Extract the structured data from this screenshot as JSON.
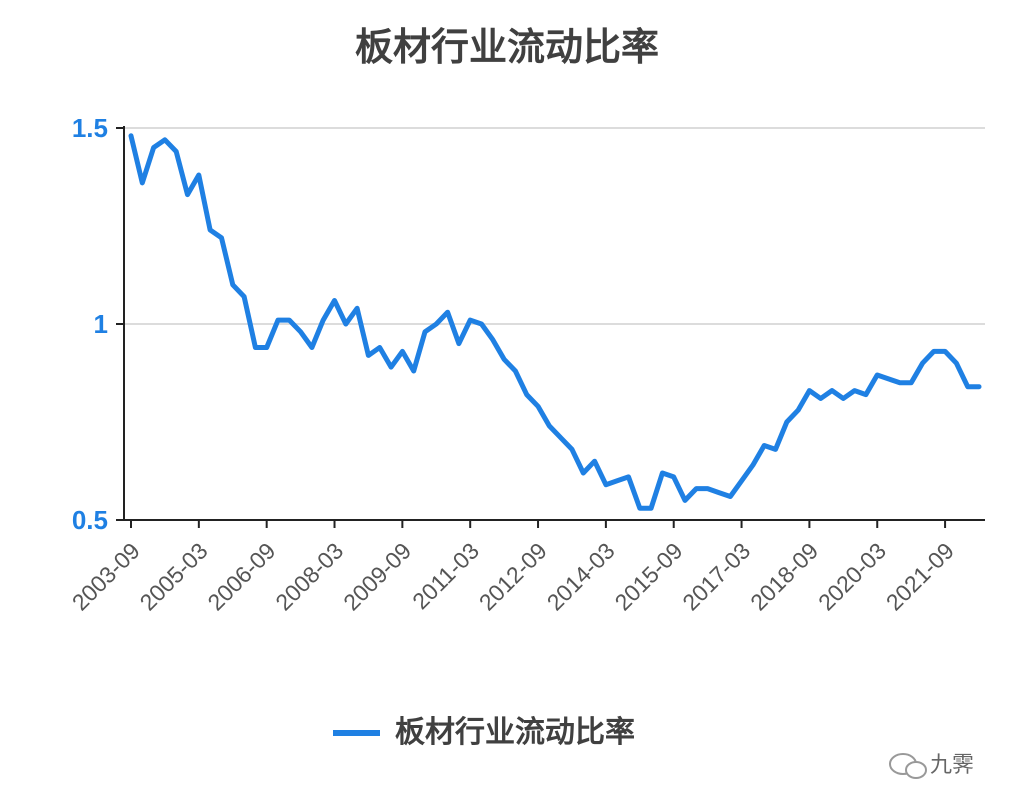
{
  "chart_data": {
    "type": "line",
    "title": "板材行业流动比率",
    "categories": [
      "2003-09",
      null,
      null,
      null,
      null,
      null,
      "2005-03",
      null,
      null,
      null,
      null,
      null,
      "2006-09",
      null,
      null,
      null,
      null,
      null,
      "2008-03",
      null,
      null,
      null,
      null,
      null,
      "2009-09",
      null,
      null,
      null,
      null,
      null,
      "2011-03",
      null,
      null,
      null,
      null,
      null,
      "2012-09",
      null,
      null,
      null,
      null,
      null,
      "2014-03",
      null,
      null,
      null,
      null,
      null,
      "2015-09",
      null,
      null,
      null,
      null,
      null,
      "2017-03",
      null,
      null,
      null,
      null,
      null,
      "2018-09",
      null,
      null,
      null,
      null,
      null,
      "2020-03",
      null,
      null,
      null,
      null,
      null,
      "2021-09",
      null,
      null,
      null
    ],
    "series": [
      {
        "name": "板材行业流动比率",
        "color": "#1f80e3",
        "values": [
          1.48,
          1.36,
          1.45,
          1.47,
          1.44,
          1.33,
          1.38,
          1.24,
          1.22,
          1.1,
          1.07,
          0.94,
          0.94,
          1.01,
          1.01,
          0.98,
          0.94,
          1.01,
          1.06,
          1.0,
          1.04,
          0.92,
          0.94,
          0.89,
          0.93,
          0.88,
          0.98,
          1.0,
          1.03,
          0.95,
          1.01,
          1.0,
          0.96,
          0.91,
          0.88,
          0.82,
          0.79,
          0.74,
          0.71,
          0.68,
          0.62,
          0.65,
          0.59,
          0.6,
          0.61,
          0.53,
          0.53,
          0.62,
          0.61,
          0.55,
          0.58,
          0.58,
          0.57,
          0.56,
          0.6,
          0.64,
          0.69,
          0.68,
          0.75,
          0.78,
          0.83,
          0.81,
          0.83,
          0.81,
          0.83,
          0.82,
          0.87,
          0.86,
          0.85,
          0.85,
          0.9,
          0.93,
          0.93,
          0.9,
          0.84,
          0.84
        ]
      }
    ],
    "ylim": [
      0.5,
      1.5
    ],
    "yticks": [
      0.5,
      1,
      1.5
    ],
    "grid": true,
    "legend": "bottom",
    "watermark": "九霁"
  }
}
